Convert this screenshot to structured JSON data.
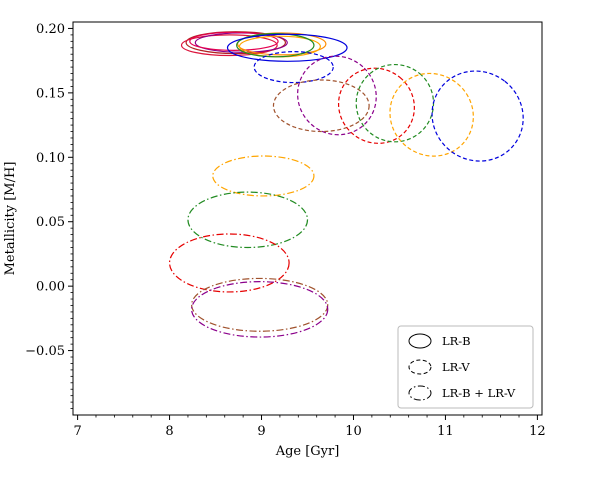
{
  "chart_data": {
    "type": "scatter",
    "xlabel": "Age [Gyr]",
    "ylabel": "Metallicity [M/H]",
    "xlim": [
      6.95,
      12.05
    ],
    "ylim": [
      -0.1,
      0.205
    ],
    "xticks": [
      7,
      8,
      9,
      10,
      11,
      12
    ],
    "yticks": [
      -0.05,
      0.0,
      0.05,
      0.1,
      0.15,
      0.2
    ],
    "ytick_labels": [
      "−0.05",
      "0.00",
      "0.05",
      "0.10",
      "0.15",
      "0.20"
    ],
    "legend_position": "lower-right",
    "legend": [
      {
        "label": "LR-B",
        "style": "solid"
      },
      {
        "label": "LR-V",
        "style": "dashed"
      },
      {
        "label": "LR-B + LR-V",
        "style": "dashdot"
      }
    ],
    "ellipses": [
      {
        "style": "solid",
        "color": "#b22222",
        "cx": 8.72,
        "cy": 0.189,
        "rx": 0.54,
        "ry": 0.0085
      },
      {
        "style": "solid",
        "color": "#dc143c",
        "cx": 8.65,
        "cy": 0.187,
        "rx": 0.52,
        "ry": 0.008
      },
      {
        "style": "solid",
        "color": "#8b008b",
        "cx": 8.78,
        "cy": 0.189,
        "rx": 0.5,
        "ry": 0.0075
      },
      {
        "style": "solid",
        "color": "#e5004f",
        "cx": 8.7,
        "cy": 0.19,
        "rx": 0.48,
        "ry": 0.007
      },
      {
        "style": "solid",
        "color": "#ff8c00",
        "cx": 9.22,
        "cy": 0.188,
        "rx": 0.48,
        "ry": 0.0085
      },
      {
        "style": "solid",
        "color": "#ffa500",
        "cx": 9.2,
        "cy": 0.186,
        "rx": 0.44,
        "ry": 0.008
      },
      {
        "style": "solid",
        "color": "#228b22",
        "cx": 9.15,
        "cy": 0.187,
        "rx": 0.42,
        "ry": 0.009
      },
      {
        "style": "solid",
        "color": "#0000dd",
        "cx": 9.28,
        "cy": 0.185,
        "rx": 0.65,
        "ry": 0.0105
      },
      {
        "style": "dashed",
        "color": "#0000dd",
        "cx": 9.35,
        "cy": 0.17,
        "rx": 0.43,
        "ry": 0.012
      },
      {
        "style": "dashed",
        "color": "#8b008b",
        "cx": 9.82,
        "cy": 0.148,
        "rx": 0.42,
        "ry": 0.031,
        "rot": -45
      },
      {
        "style": "dashed",
        "color": "#a0522d",
        "cx": 9.65,
        "cy": 0.14,
        "rx": 0.52,
        "ry": 0.02
      },
      {
        "style": "dashed",
        "color": "#e60000",
        "cx": 10.25,
        "cy": 0.14,
        "rx": 0.4,
        "ry": 0.03,
        "rot": -50
      },
      {
        "style": "dashed",
        "color": "#228b22",
        "cx": 10.45,
        "cy": 0.142,
        "rx": 0.42,
        "ry": 0.03,
        "rot": -50
      },
      {
        "style": "dashed",
        "color": "#ffa500",
        "cx": 10.85,
        "cy": 0.133,
        "rx": 0.44,
        "ry": 0.033,
        "rot": -50
      },
      {
        "style": "dashed",
        "color": "#0000dd",
        "cx": 11.35,
        "cy": 0.132,
        "rx": 0.48,
        "ry": 0.036,
        "rot": -52
      },
      {
        "style": "dashdot",
        "color": "#ffa500",
        "cx": 9.02,
        "cy": 0.0855,
        "rx": 0.55,
        "ry": 0.0155
      },
      {
        "style": "dashdot",
        "color": "#228b22",
        "cx": 8.85,
        "cy": 0.0515,
        "rx": 0.65,
        "ry": 0.0215
      },
      {
        "style": "dashdot",
        "color": "#e60000",
        "cx": 8.65,
        "cy": 0.018,
        "rx": 0.65,
        "ry": 0.0225
      },
      {
        "style": "dashdot",
        "color": "#a0522d",
        "cx": 8.98,
        "cy": -0.0145,
        "rx": 0.74,
        "ry": 0.0205
      },
      {
        "style": "dashdot",
        "color": "#8b008b",
        "cx": 8.98,
        "cy": -0.018,
        "rx": 0.74,
        "ry": 0.0215
      }
    ]
  }
}
